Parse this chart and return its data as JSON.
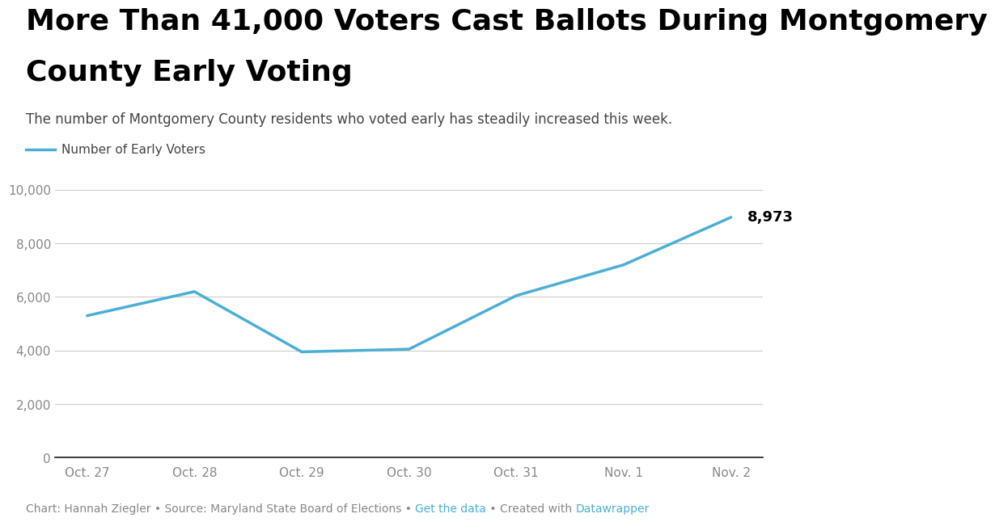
{
  "title_line1": "More Than 41,000 Voters Cast Ballots During Montgomery",
  "title_line2": "County Early Voting",
  "subtitle": "The number of Montgomery County residents who voted early has steadily increased this week.",
  "legend_label": "Number of Early Voters",
  "x_labels": [
    "Oct. 27",
    "Oct. 28",
    "Oct. 29",
    "Oct. 30",
    "Oct. 31",
    "Nov. 1",
    "Nov. 2"
  ],
  "y_values": [
    5300,
    6200,
    3950,
    4050,
    6050,
    7200,
    8973
  ],
  "last_label": "8,973",
  "line_color": "#4BAFD4",
  "line_width": 2.5,
  "y_min": 0,
  "y_max": 10000,
  "y_ticks": [
    0,
    2000,
    4000,
    6000,
    8000,
    10000
  ],
  "background_color": "#ffffff",
  "grid_color": "#cccccc",
  "axis_color": "#1a1a1a",
  "tick_color": "#888888",
  "title_color": "#000000",
  "subtitle_color": "#444444",
  "footer_text_gray": "Chart: Hannah Ziegler • Source: Maryland State Board of Elections • ",
  "footer_link1": "Get the data",
  "footer_middle": " • Created with ",
  "footer_link2": "Datawrapper",
  "footer_link_color": "#4BAFD4",
  "footer_color": "#888888",
  "title_fontsize": 26,
  "subtitle_fontsize": 12,
  "legend_fontsize": 11,
  "tick_fontsize": 11,
  "annotation_fontsize": 13,
  "footer_fontsize": 10
}
